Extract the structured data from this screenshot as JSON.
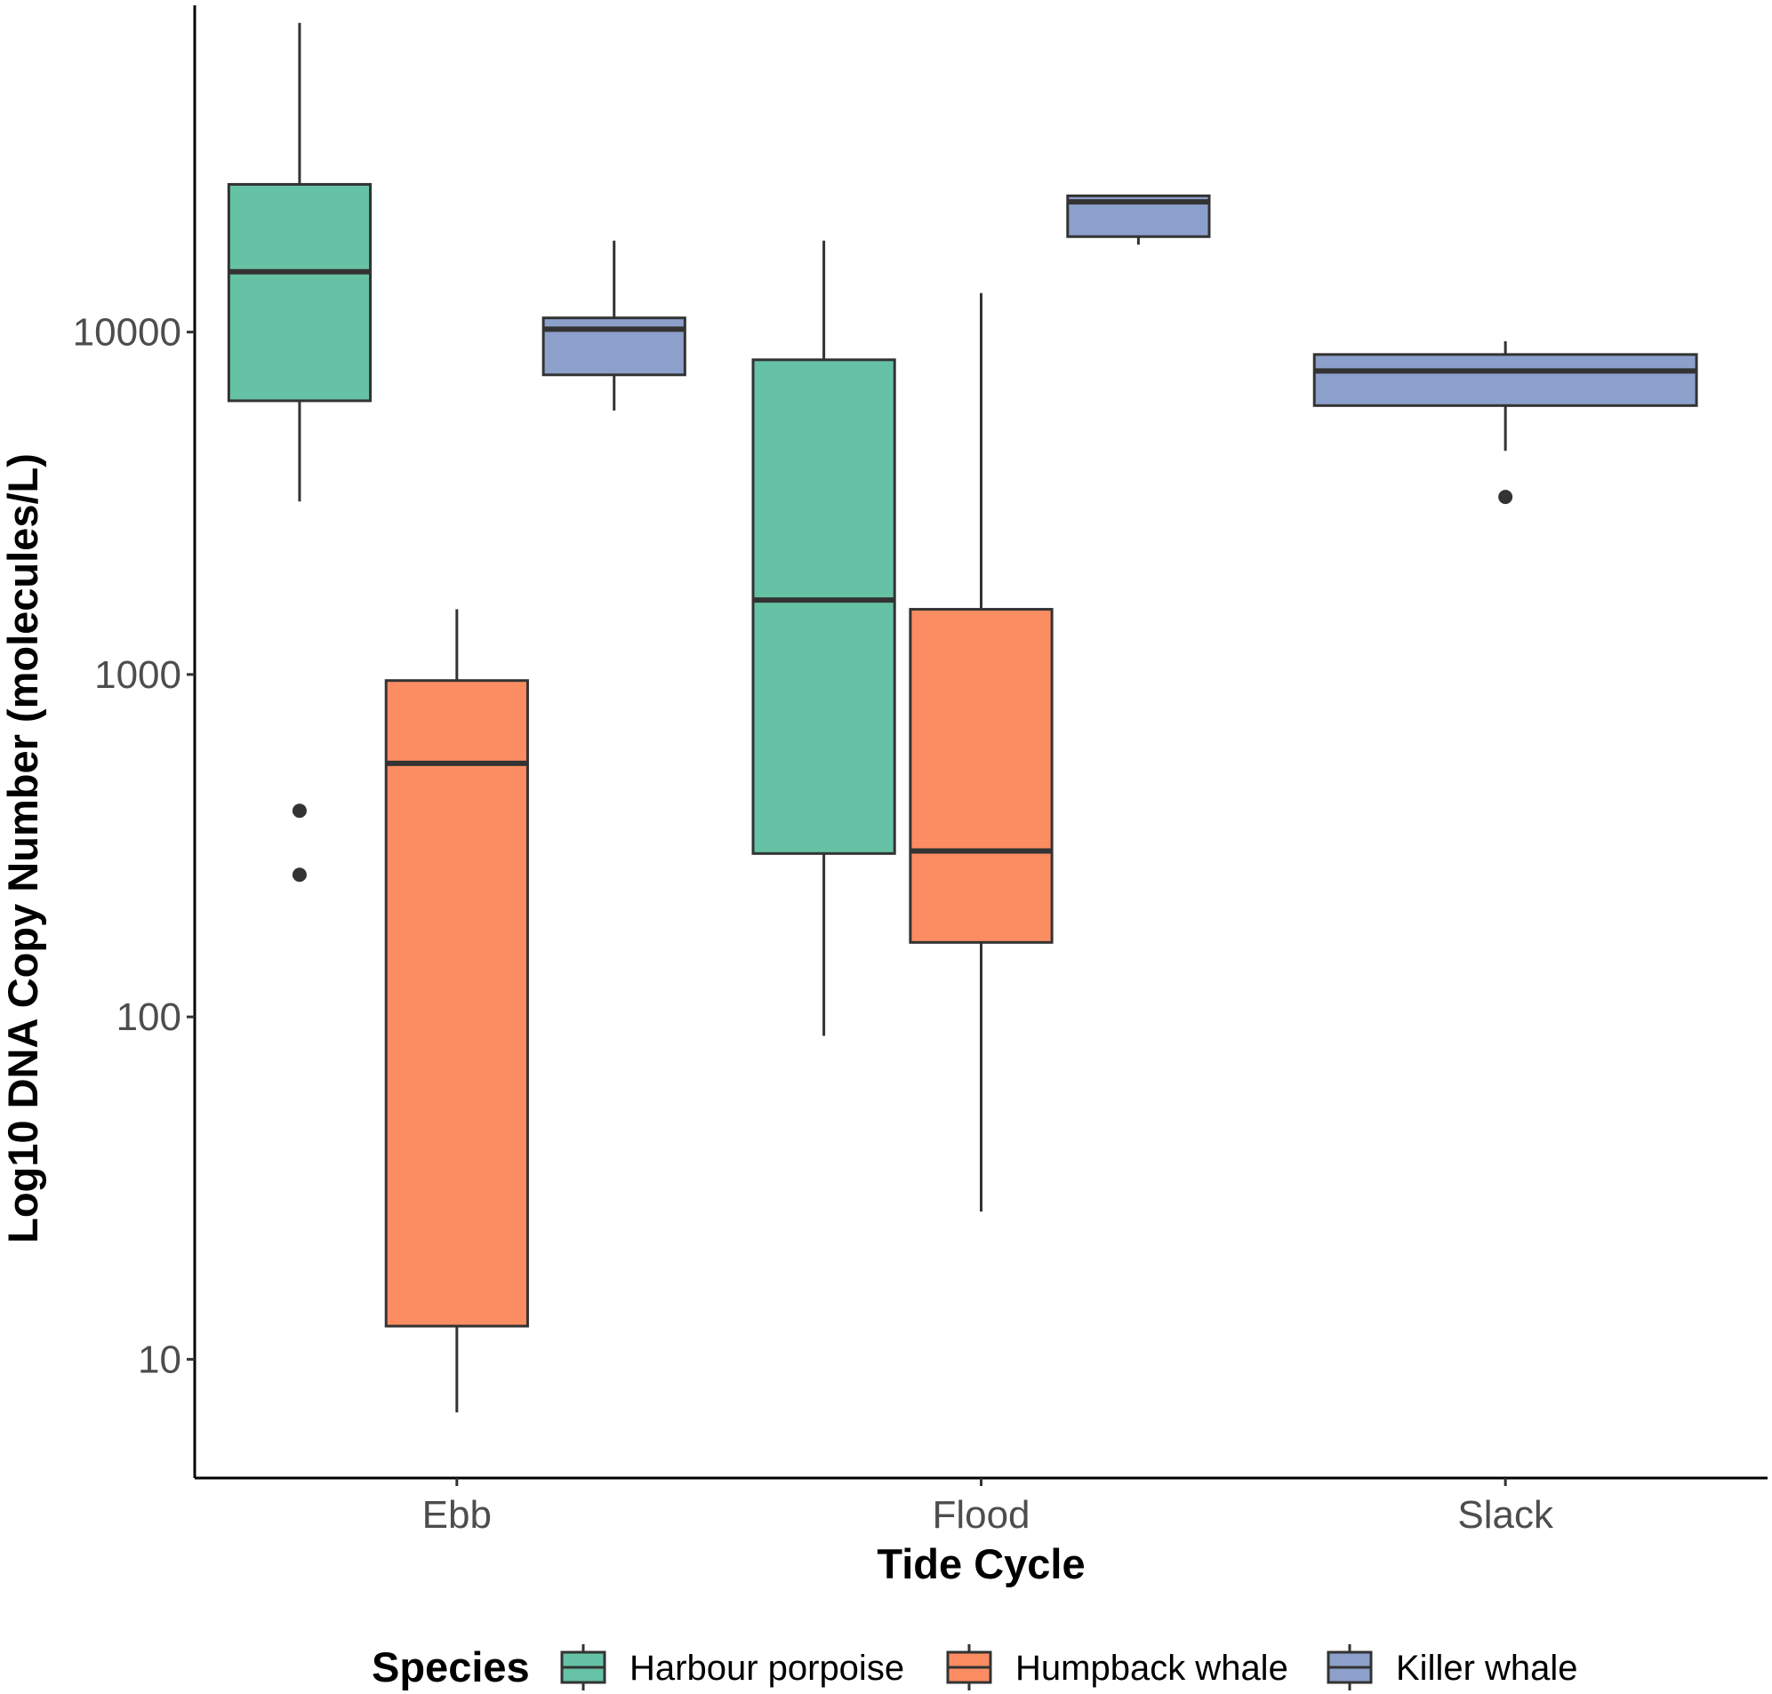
{
  "chart_data": {
    "type": "box",
    "xlabel": "Tide Cycle",
    "ylabel": "Log10 DNA Copy Number (molecules/L)",
    "y_scale": "log10",
    "ylim": [
      4.5,
      90000
    ],
    "y_ticks": [
      10,
      100,
      1000,
      10000
    ],
    "y_tick_labels": [
      "10",
      "100",
      "1000",
      "10000"
    ],
    "categories": [
      "Ebb",
      "Flood",
      "Slack"
    ],
    "grid": false,
    "legend": {
      "title": "Species",
      "position": "bottom"
    },
    "series": [
      {
        "name": "Harbour porpoise",
        "color": "#66c2a5",
        "boxes": [
          {
            "category": "Ebb",
            "whisker_low": 3200,
            "q1": 6300,
            "median": 15000,
            "q3": 27000,
            "whisker_high": 80000,
            "outliers": [
              400,
              260
            ]
          },
          {
            "category": "Flood",
            "whisker_low": 88,
            "q1": 300,
            "median": 1650,
            "q3": 8300,
            "whisker_high": 18500,
            "outliers": []
          }
        ]
      },
      {
        "name": "Humpback whale",
        "color": "#fc8d62",
        "boxes": [
          {
            "category": "Ebb",
            "whisker_low": 7,
            "q1": 12.5,
            "median": 550,
            "q3": 960,
            "whisker_high": 1550,
            "outliers": []
          },
          {
            "category": "Flood",
            "whisker_low": 27,
            "q1": 165,
            "median": 305,
            "q3": 1550,
            "whisker_high": 13000,
            "outliers": []
          }
        ]
      },
      {
        "name": "Killer whale",
        "color": "#8da0cb",
        "boxes": [
          {
            "category": "Ebb",
            "whisker_low": 5900,
            "q1": 7500,
            "median": 10200,
            "q3": 11000,
            "whisker_high": 18500,
            "outliers": []
          },
          {
            "category": "Flood",
            "whisker_low": 18000,
            "q1": 19000,
            "median": 24000,
            "q3": 25000,
            "whisker_high": 25000,
            "outliers": []
          },
          {
            "category": "Slack",
            "whisker_low": 4500,
            "q1": 6100,
            "median": 7700,
            "q3": 8600,
            "whisker_high": 9400,
            "outliers": [
              3300
            ]
          }
        ]
      }
    ]
  }
}
